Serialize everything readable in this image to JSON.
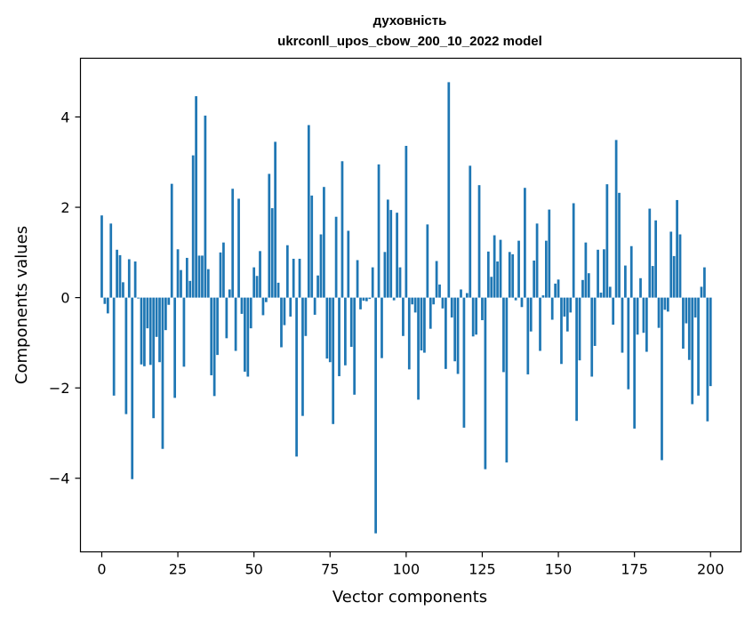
{
  "chart_data": {
    "type": "bar",
    "title": "духовність",
    "subtitle": "ukrconll_upos_cbow_200_10_2022 model",
    "xlabel": "Vector components",
    "ylabel": "Components values",
    "xlim": [
      -7,
      210
    ],
    "ylim": [
      -5.63,
      5.3
    ],
    "xticks": [
      0,
      25,
      50,
      75,
      100,
      125,
      150,
      175,
      200
    ],
    "yticks": [
      -4,
      -2,
      0,
      2,
      4
    ],
    "bar_color": "#1f77b4",
    "grid": false,
    "legend": "none",
    "values": [
      1.82,
      -0.14,
      -0.35,
      1.64,
      -2.17,
      1.06,
      0.94,
      0.34,
      -2.58,
      0.85,
      -4.02,
      0.8,
      -0.02,
      -1.48,
      -1.52,
      -0.68,
      -1.49,
      -2.67,
      -0.87,
      -1.43,
      -3.35,
      -0.72,
      -0.16,
      2.52,
      -2.22,
      1.07,
      0.61,
      -1.53,
      0.88,
      0.37,
      3.15,
      4.46,
      0.93,
      0.93,
      4.03,
      0.63,
      -1.72,
      -2.18,
      -1.27,
      1.0,
      1.22,
      -0.9,
      0.18,
      2.41,
      -1.18,
      2.19,
      -0.36,
      -1.64,
      -1.75,
      -0.68,
      0.67,
      0.48,
      1.03,
      -0.39,
      -0.1,
      2.74,
      1.98,
      3.45,
      0.33,
      -1.1,
      -0.61,
      1.16,
      -0.42,
      0.86,
      -3.52,
      0.86,
      -2.62,
      -0.85,
      3.82,
      2.26,
      -0.38,
      0.49,
      1.4,
      2.45,
      -1.35,
      -1.43,
      -2.8,
      1.79,
      -1.74,
      3.02,
      -1.5,
      1.48,
      -1.09,
      -2.15,
      0.83,
      -0.26,
      -0.07,
      -0.08,
      -0.03,
      0.67,
      -5.22,
      2.95,
      -1.34,
      1.01,
      2.17,
      1.94,
      -0.06,
      1.88,
      0.67,
      -0.85,
      3.36,
      -1.59,
      -0.15,
      -0.33,
      -2.26,
      -1.17,
      -1.22,
      1.62,
      -0.69,
      -0.15,
      0.81,
      0.29,
      -0.24,
      -1.58,
      4.77,
      -0.44,
      -1.41,
      -1.69,
      0.18,
      -2.88,
      0.1,
      2.92,
      -0.86,
      -0.82,
      2.49,
      -0.5,
      -3.8,
      1.02,
      0.46,
      1.38,
      0.8,
      1.28,
      -1.65,
      -3.65,
      1.01,
      0.96,
      -0.06,
      1.26,
      -0.21,
      2.43,
      -1.7,
      -0.75,
      0.82,
      1.64,
      -1.18,
      0.05,
      1.26,
      1.95,
      -0.49,
      0.31,
      0.4,
      -1.47,
      -0.42,
      -0.75,
      -0.33,
      2.09,
      -2.73,
      -1.39,
      0.39,
      1.22,
      0.54,
      -1.75,
      -1.07,
      1.06,
      0.11,
      1.07,
      2.51,
      0.24,
      -0.6,
      3.49,
      2.32,
      -1.22,
      0.71,
      -2.03,
      1.14,
      -2.9,
      -0.82,
      0.43,
      -0.78,
      -1.2,
      1.97,
      0.7,
      1.71,
      -0.67,
      -3.6,
      -0.27,
      -0.31,
      1.46,
      0.92,
      2.16,
      1.4,
      -1.13,
      -0.57,
      -1.38,
      -2.36,
      -0.44,
      -2.17,
      0.24,
      0.67,
      -2.74,
      -1.96
    ]
  }
}
